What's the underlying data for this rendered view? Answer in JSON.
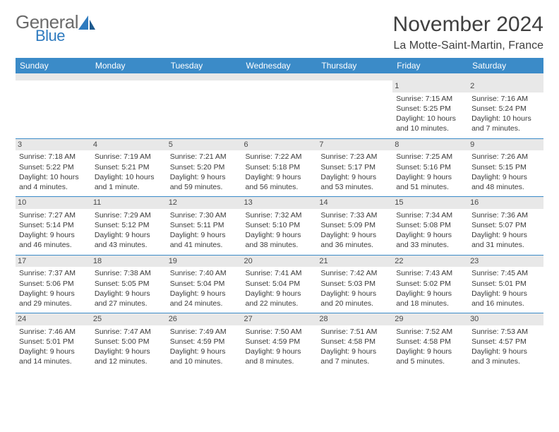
{
  "logo": {
    "general": "General",
    "blue": "Blue"
  },
  "title": "November 2024",
  "location": "La Motte-Saint-Martin, France",
  "colors": {
    "header_bg": "#3b8bc8",
    "header_text": "#ffffff",
    "daynum_bg": "#e8e8e8",
    "row_border": "#3b8bc8",
    "text": "#3a3a3a",
    "logo_gray": "#6b6b6b",
    "logo_blue": "#2f7bbf"
  },
  "typography": {
    "title_fontsize": 30,
    "location_fontsize": 16,
    "header_fontsize": 12,
    "cell_fontsize": 10.5,
    "daynum_fontsize": 11
  },
  "weekdays": [
    "Sunday",
    "Monday",
    "Tuesday",
    "Wednesday",
    "Thursday",
    "Friday",
    "Saturday"
  ],
  "weeks": [
    [
      {
        "empty": true
      },
      {
        "empty": true
      },
      {
        "empty": true
      },
      {
        "empty": true
      },
      {
        "empty": true
      },
      {
        "day": "1",
        "sunrise": "Sunrise: 7:15 AM",
        "sunset": "Sunset: 5:25 PM",
        "daylight": "Daylight: 10 hours and 10 minutes."
      },
      {
        "day": "2",
        "sunrise": "Sunrise: 7:16 AM",
        "sunset": "Sunset: 5:24 PM",
        "daylight": "Daylight: 10 hours and 7 minutes."
      }
    ],
    [
      {
        "day": "3",
        "sunrise": "Sunrise: 7:18 AM",
        "sunset": "Sunset: 5:22 PM",
        "daylight": "Daylight: 10 hours and 4 minutes."
      },
      {
        "day": "4",
        "sunrise": "Sunrise: 7:19 AM",
        "sunset": "Sunset: 5:21 PM",
        "daylight": "Daylight: 10 hours and 1 minute."
      },
      {
        "day": "5",
        "sunrise": "Sunrise: 7:21 AM",
        "sunset": "Sunset: 5:20 PM",
        "daylight": "Daylight: 9 hours and 59 minutes."
      },
      {
        "day": "6",
        "sunrise": "Sunrise: 7:22 AM",
        "sunset": "Sunset: 5:18 PM",
        "daylight": "Daylight: 9 hours and 56 minutes."
      },
      {
        "day": "7",
        "sunrise": "Sunrise: 7:23 AM",
        "sunset": "Sunset: 5:17 PM",
        "daylight": "Daylight: 9 hours and 53 minutes."
      },
      {
        "day": "8",
        "sunrise": "Sunrise: 7:25 AM",
        "sunset": "Sunset: 5:16 PM",
        "daylight": "Daylight: 9 hours and 51 minutes."
      },
      {
        "day": "9",
        "sunrise": "Sunrise: 7:26 AM",
        "sunset": "Sunset: 5:15 PM",
        "daylight": "Daylight: 9 hours and 48 minutes."
      }
    ],
    [
      {
        "day": "10",
        "sunrise": "Sunrise: 7:27 AM",
        "sunset": "Sunset: 5:14 PM",
        "daylight": "Daylight: 9 hours and 46 minutes."
      },
      {
        "day": "11",
        "sunrise": "Sunrise: 7:29 AM",
        "sunset": "Sunset: 5:12 PM",
        "daylight": "Daylight: 9 hours and 43 minutes."
      },
      {
        "day": "12",
        "sunrise": "Sunrise: 7:30 AM",
        "sunset": "Sunset: 5:11 PM",
        "daylight": "Daylight: 9 hours and 41 minutes."
      },
      {
        "day": "13",
        "sunrise": "Sunrise: 7:32 AM",
        "sunset": "Sunset: 5:10 PM",
        "daylight": "Daylight: 9 hours and 38 minutes."
      },
      {
        "day": "14",
        "sunrise": "Sunrise: 7:33 AM",
        "sunset": "Sunset: 5:09 PM",
        "daylight": "Daylight: 9 hours and 36 minutes."
      },
      {
        "day": "15",
        "sunrise": "Sunrise: 7:34 AM",
        "sunset": "Sunset: 5:08 PM",
        "daylight": "Daylight: 9 hours and 33 minutes."
      },
      {
        "day": "16",
        "sunrise": "Sunrise: 7:36 AM",
        "sunset": "Sunset: 5:07 PM",
        "daylight": "Daylight: 9 hours and 31 minutes."
      }
    ],
    [
      {
        "day": "17",
        "sunrise": "Sunrise: 7:37 AM",
        "sunset": "Sunset: 5:06 PM",
        "daylight": "Daylight: 9 hours and 29 minutes."
      },
      {
        "day": "18",
        "sunrise": "Sunrise: 7:38 AM",
        "sunset": "Sunset: 5:05 PM",
        "daylight": "Daylight: 9 hours and 27 minutes."
      },
      {
        "day": "19",
        "sunrise": "Sunrise: 7:40 AM",
        "sunset": "Sunset: 5:04 PM",
        "daylight": "Daylight: 9 hours and 24 minutes."
      },
      {
        "day": "20",
        "sunrise": "Sunrise: 7:41 AM",
        "sunset": "Sunset: 5:04 PM",
        "daylight": "Daylight: 9 hours and 22 minutes."
      },
      {
        "day": "21",
        "sunrise": "Sunrise: 7:42 AM",
        "sunset": "Sunset: 5:03 PM",
        "daylight": "Daylight: 9 hours and 20 minutes."
      },
      {
        "day": "22",
        "sunrise": "Sunrise: 7:43 AM",
        "sunset": "Sunset: 5:02 PM",
        "daylight": "Daylight: 9 hours and 18 minutes."
      },
      {
        "day": "23",
        "sunrise": "Sunrise: 7:45 AM",
        "sunset": "Sunset: 5:01 PM",
        "daylight": "Daylight: 9 hours and 16 minutes."
      }
    ],
    [
      {
        "day": "24",
        "sunrise": "Sunrise: 7:46 AM",
        "sunset": "Sunset: 5:01 PM",
        "daylight": "Daylight: 9 hours and 14 minutes."
      },
      {
        "day": "25",
        "sunrise": "Sunrise: 7:47 AM",
        "sunset": "Sunset: 5:00 PM",
        "daylight": "Daylight: 9 hours and 12 minutes."
      },
      {
        "day": "26",
        "sunrise": "Sunrise: 7:49 AM",
        "sunset": "Sunset: 4:59 PM",
        "daylight": "Daylight: 9 hours and 10 minutes."
      },
      {
        "day": "27",
        "sunrise": "Sunrise: 7:50 AM",
        "sunset": "Sunset: 4:59 PM",
        "daylight": "Daylight: 9 hours and 8 minutes."
      },
      {
        "day": "28",
        "sunrise": "Sunrise: 7:51 AM",
        "sunset": "Sunset: 4:58 PM",
        "daylight": "Daylight: 9 hours and 7 minutes."
      },
      {
        "day": "29",
        "sunrise": "Sunrise: 7:52 AM",
        "sunset": "Sunset: 4:58 PM",
        "daylight": "Daylight: 9 hours and 5 minutes."
      },
      {
        "day": "30",
        "sunrise": "Sunrise: 7:53 AM",
        "sunset": "Sunset: 4:57 PM",
        "daylight": "Daylight: 9 hours and 3 minutes."
      }
    ]
  ]
}
